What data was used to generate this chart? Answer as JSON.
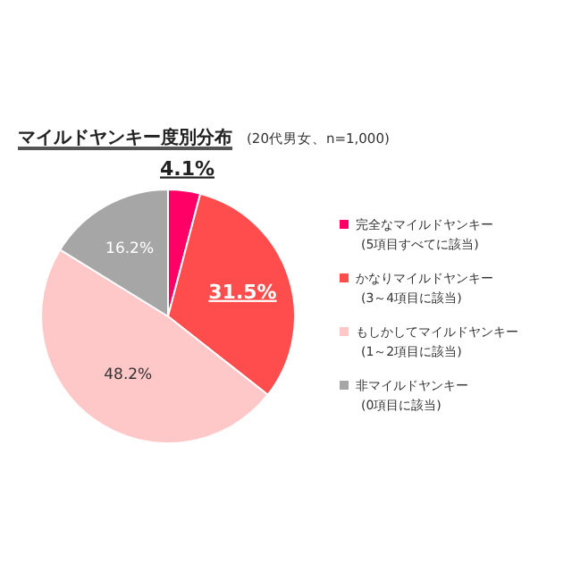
{
  "chart_data": {
    "type": "pie",
    "title": "マイルドヤンキー度別分布",
    "subtitle": "(20代男女、n=1,000)",
    "categories": [
      "完全なマイルドヤンキー (5項目すべてに該当)",
      "かなりマイルドヤンキー (3～4項目に該当)",
      "もしかしてマイルドヤンキー (1～2項目に該当)",
      "非マイルドヤンキー (0項目に該当)"
    ],
    "values": [
      4.1,
      31.5,
      48.2,
      16.2
    ],
    "colors": [
      "#ff0066",
      "#ff4d4d",
      "#ffc8c8",
      "#a6a6a6"
    ],
    "value_labels": [
      "4.1%",
      "31.5%",
      "48.2%",
      "16.2%"
    ],
    "legend": "right"
  }
}
